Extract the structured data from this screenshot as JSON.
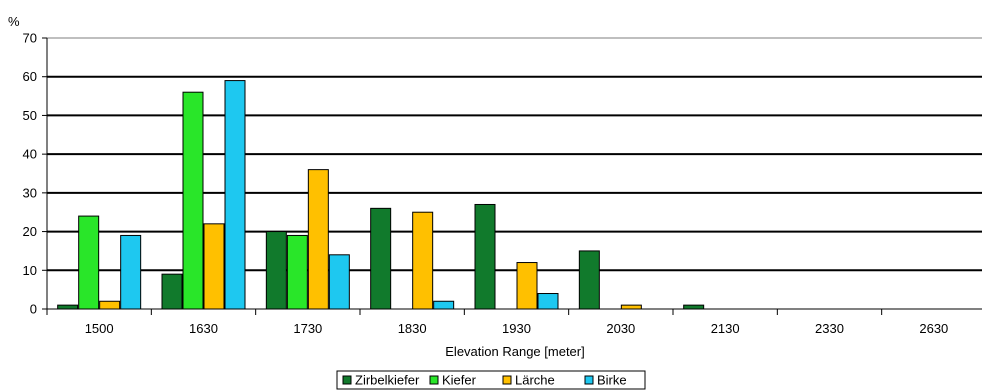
{
  "chart_data": {
    "type": "bar",
    "ylabel": "%",
    "xlabel": "Elevation Range [meter]",
    "categories": [
      "1500",
      "1630",
      "1730",
      "1830",
      "1930",
      "2030",
      "2130",
      "2330",
      "2630"
    ],
    "ylim": [
      0,
      70
    ],
    "yticks": [
      0,
      10,
      20,
      30,
      40,
      50,
      60,
      70
    ],
    "grid": true,
    "legend_position": "bottom-center",
    "series": [
      {
        "name": "Zirbelkiefer",
        "color": "#117a2c",
        "values": [
          1,
          9,
          20,
          26,
          27,
          15,
          1,
          0,
          0
        ]
      },
      {
        "name": "Kiefer",
        "color": "#29e629",
        "values": [
          24,
          56,
          19,
          0,
          0,
          0,
          0,
          0,
          0
        ]
      },
      {
        "name": "Lärche",
        "color": "#ffc000",
        "values": [
          2,
          22,
          36,
          25,
          12,
          1,
          0,
          0,
          0
        ]
      },
      {
        "name": "Birke",
        "color": "#1ec8f0",
        "values": [
          19,
          59,
          14,
          2,
          4,
          0,
          0,
          0,
          0
        ]
      }
    ]
  }
}
